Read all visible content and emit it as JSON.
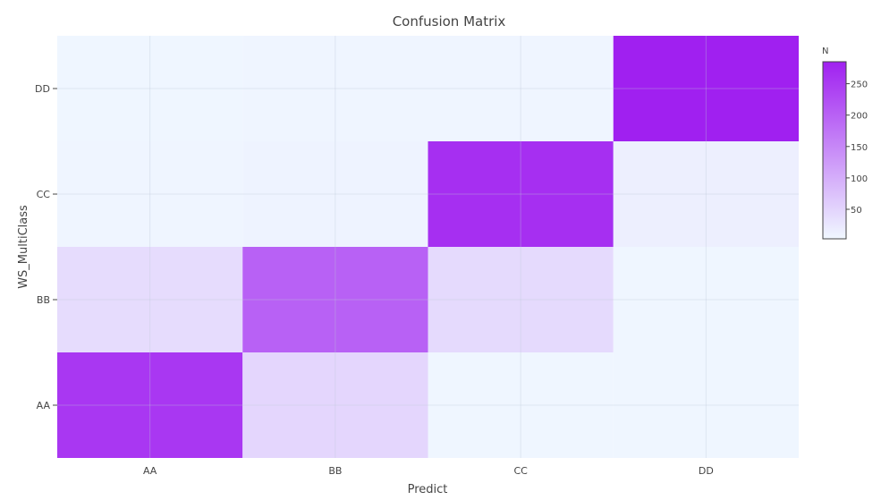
{
  "chart_data": {
    "type": "heatmap",
    "title": "Confusion Matrix",
    "xlabel": "Predict",
    "ylabel": "WS_MultiClass",
    "x_categories": [
      "AA",
      "BB",
      "CC",
      "DD"
    ],
    "y_categories": [
      "AA",
      "BB",
      "CC",
      "DD"
    ],
    "z": [
      [
        255,
        47,
        6,
        5
      ],
      [
        40,
        200,
        42,
        6
      ],
      [
        7,
        10,
        265,
        15
      ],
      [
        5,
        7,
        7,
        285
      ]
    ],
    "colorbar": {
      "title": "N",
      "ticks": [
        50,
        100,
        150,
        200,
        250
      ],
      "min": 3,
      "max": 285
    },
    "colorscale": [
      "#f0f8ff",
      "#a020f0"
    ],
    "grid": true
  }
}
